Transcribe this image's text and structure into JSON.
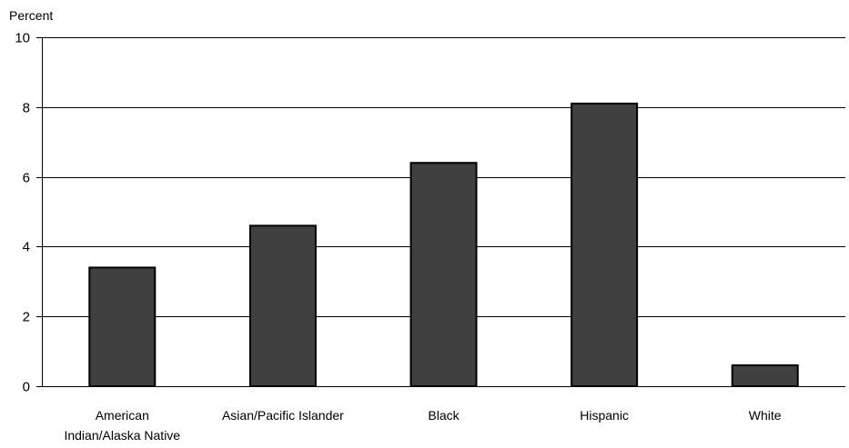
{
  "chart_data": {
    "type": "bar",
    "ylabel": "Percent",
    "xlabel": "",
    "title": "",
    "categories": [
      [
        "American",
        "Indian/Alaska Native"
      ],
      [
        "Asian/Pacific Islander"
      ],
      [
        "Black"
      ],
      [
        "Hispanic"
      ],
      [
        "White"
      ]
    ],
    "values": [
      3.4,
      4.6,
      6.4,
      8.1,
      0.6
    ],
    "ylim": [
      0,
      10
    ],
    "yticks": [
      0,
      2,
      4,
      6,
      8,
      10
    ],
    "grid": true,
    "legend": "none",
    "bar_color": "#404040",
    "bar_border_color": "#000000",
    "grid_color": "#000000"
  }
}
